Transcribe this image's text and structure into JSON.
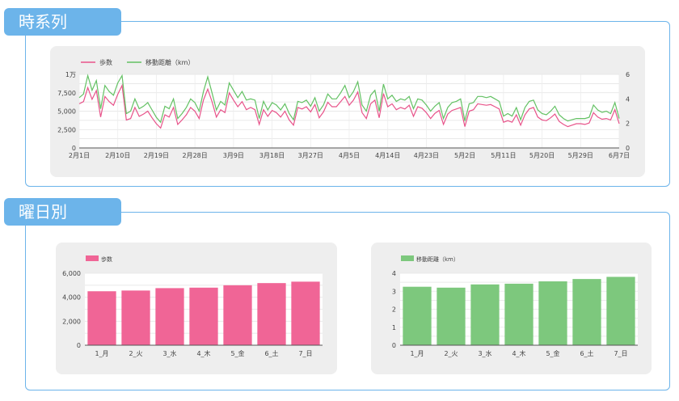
{
  "sections": {
    "timeseries_title": "時系列",
    "weekday_title": "曜日別"
  },
  "colors": {
    "accent": "#6cb4ea",
    "steps": "#e8538a",
    "distance": "#63c163",
    "steps_bar": "#f06596",
    "distance_bar": "#7dc87d",
    "panel_bg": "#eeeeee"
  },
  "chart_data": [
    {
      "type": "line",
      "legend_placement": "top-left",
      "grid": true,
      "x_ticks": [
        "2月1日",
        "2月10日",
        "2月19日",
        "2月28日",
        "3月9日",
        "3月18日",
        "3月27日",
        "4月5日",
        "4月14日",
        "4月23日",
        "5月2日",
        "5月11日",
        "5月20日",
        "5月29日",
        "6月7日"
      ],
      "y_left_ticks": [
        "0",
        "2,500",
        "5,000",
        "7,500",
        "1万"
      ],
      "y_right_ticks": [
        "0",
        "2",
        "4",
        "6"
      ],
      "ylim_left": [
        0,
        10000
      ],
      "ylim_right": [
        0,
        6
      ],
      "series": [
        {
          "name": "歩数",
          "axis": "left",
          "values": [
            6000,
            6300,
            8200,
            6600,
            7800,
            4200,
            7000,
            6300,
            5800,
            7300,
            8500,
            3800,
            4000,
            5500,
            4300,
            4600,
            5000,
            4100,
            3300,
            2700,
            4500,
            4200,
            5500,
            3200,
            3800,
            4500,
            5500,
            5000,
            4000,
            6500,
            8000,
            6300,
            4200,
            5200,
            4800,
            7500,
            6500,
            5600,
            6300,
            5200,
            5500,
            5200,
            3200,
            5200,
            4300,
            5100,
            4800,
            4200,
            5000,
            3800,
            3100,
            5500,
            5300,
            5600,
            4900,
            5900,
            4100,
            4900,
            6200,
            5600,
            5600,
            6300,
            7000,
            5800,
            6500,
            7600,
            4800,
            4000,
            6000,
            6500,
            4100,
            7400,
            5600,
            6000,
            5200,
            5500,
            5300,
            5800,
            4300,
            5600,
            5400,
            4800,
            4000,
            4700,
            5100,
            3200,
            4600,
            5100,
            5300,
            5500,
            2900,
            5000,
            5200,
            6000,
            5900,
            5800,
            5900,
            5600,
            5300,
            3500,
            3700,
            3500,
            4500,
            3100,
            4500,
            5300,
            5500,
            4200,
            3800,
            3700,
            4100,
            4600,
            3600,
            3200,
            2900,
            3100,
            3300,
            3300,
            3200,
            3400,
            4800,
            4200,
            3900,
            4000,
            3800,
            5200,
            3300
          ],
          "color": "#e8538a"
        },
        {
          "name": "移動距離（km）",
          "axis": "right",
          "values": [
            4.1,
            4.4,
            5.9,
            4.7,
            5.5,
            3.2,
            5.1,
            4.6,
            4.3,
            5.3,
            5.9,
            2.8,
            3.0,
            4.0,
            3.2,
            3.4,
            3.7,
            3.1,
            2.5,
            2.1,
            3.4,
            3.2,
            4.0,
            2.4,
            2.8,
            3.3,
            4.0,
            3.7,
            3.0,
            4.6,
            5.8,
            4.5,
            3.1,
            3.8,
            3.5,
            5.3,
            4.7,
            4.1,
            4.6,
            3.9,
            4.0,
            3.9,
            2.4,
            3.8,
            3.1,
            3.7,
            3.5,
            3.1,
            3.6,
            2.8,
            2.3,
            3.8,
            3.7,
            3.9,
            3.4,
            4.1,
            3.0,
            3.5,
            4.4,
            4.0,
            4.0,
            4.5,
            5.1,
            4.1,
            4.6,
            5.4,
            3.5,
            3.0,
            4.3,
            4.7,
            3.0,
            5.2,
            4.0,
            4.3,
            3.8,
            4.0,
            3.9,
            4.2,
            3.2,
            4.0,
            3.9,
            3.5,
            3.0,
            3.4,
            3.7,
            2.4,
            3.3,
            3.7,
            3.8,
            4.0,
            2.2,
            3.6,
            3.7,
            4.2,
            4.2,
            4.1,
            4.2,
            4.0,
            3.8,
            2.6,
            2.8,
            2.6,
            3.3,
            2.3,
            3.3,
            3.8,
            3.9,
            3.1,
            2.8,
            2.7,
            3.0,
            3.4,
            2.7,
            2.4,
            2.2,
            2.3,
            2.4,
            2.4,
            2.4,
            2.5,
            3.5,
            3.1,
            2.9,
            3.0,
            2.8,
            3.7,
            2.4
          ],
          "color": "#63c163"
        }
      ]
    },
    {
      "type": "bar",
      "legend_placement": "top-left",
      "grid": true,
      "categories": [
        "1_月",
        "2_火",
        "3_水",
        "4_木",
        "5_金",
        "6_土",
        "7_日"
      ],
      "series": [
        {
          "name": "歩数",
          "values": [
            4500,
            4560,
            4760,
            4800,
            5000,
            5180,
            5300
          ],
          "color": "#f06596"
        }
      ],
      "y_ticks": [
        "0",
        "2,000",
        "4,000",
        "6,000"
      ],
      "ylim": [
        0,
        6000
      ]
    },
    {
      "type": "bar",
      "legend_placement": "top-left",
      "grid": true,
      "categories": [
        "1_月",
        "2_火",
        "3_水",
        "4_木",
        "5_金",
        "6_土",
        "7_日"
      ],
      "series": [
        {
          "name": "移動距離（km）",
          "values": [
            3.25,
            3.2,
            3.38,
            3.42,
            3.55,
            3.68,
            3.8
          ],
          "color": "#7dc87d"
        }
      ],
      "y_ticks": [
        "0",
        "1",
        "2",
        "3",
        "4"
      ],
      "ylim": [
        0,
        4
      ]
    }
  ]
}
